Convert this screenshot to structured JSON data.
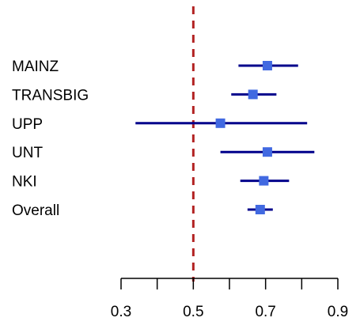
{
  "chart_data": {
    "type": "forest",
    "studies": [
      {
        "name": "MAINZ",
        "estimate": 0.705,
        "lower": 0.625,
        "upper": 0.79
      },
      {
        "name": "TRANSBIG",
        "estimate": 0.665,
        "lower": 0.605,
        "upper": 0.73
      },
      {
        "name": "UPP",
        "estimate": 0.575,
        "lower": 0.34,
        "upper": 0.815
      },
      {
        "name": "UNT",
        "estimate": 0.705,
        "lower": 0.575,
        "upper": 0.835
      },
      {
        "name": "NKI",
        "estimate": 0.695,
        "lower": 0.63,
        "upper": 0.765
      },
      {
        "name": "Overall",
        "estimate": 0.685,
        "lower": 0.65,
        "upper": 0.72
      }
    ],
    "reference_line": 0.5,
    "xlim": [
      0.3,
      0.9
    ],
    "x_ticks": [
      0.3,
      0.4,
      0.5,
      0.6,
      0.7,
      0.8,
      0.9
    ],
    "x_tick_labels": [
      "0.3",
      "0.5",
      "0.7",
      "0.9"
    ],
    "colors": {
      "interval": "#00008B",
      "point": "#4169E1",
      "reference": "#B22222",
      "axis": "#000000"
    },
    "grid": false
  }
}
